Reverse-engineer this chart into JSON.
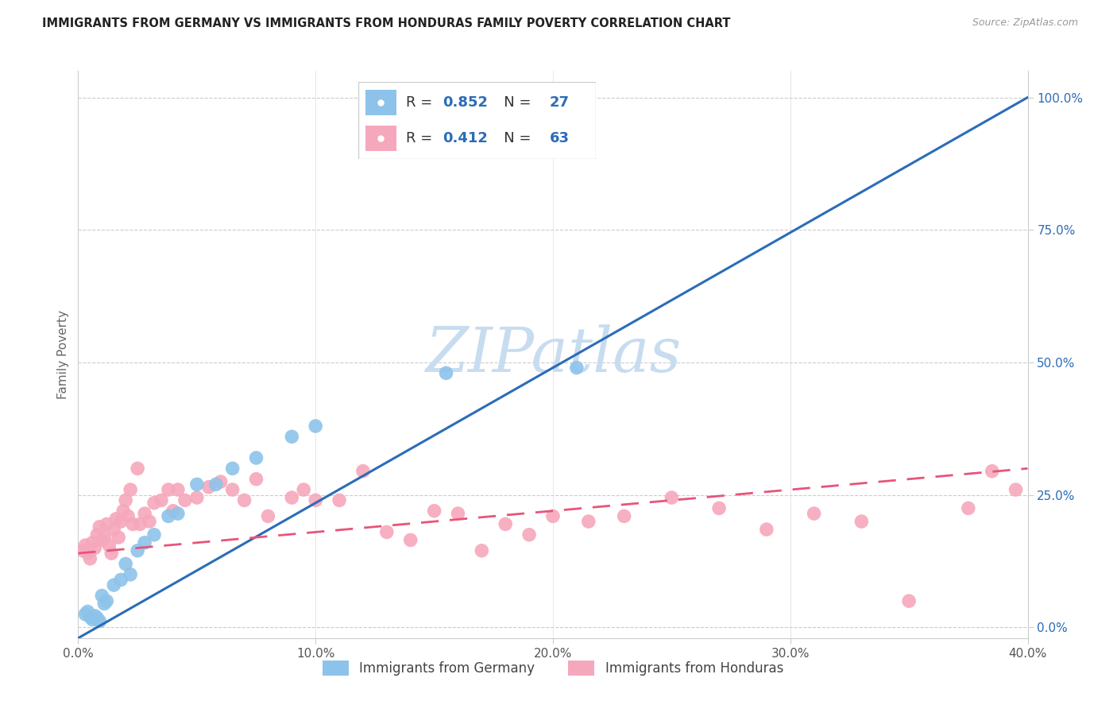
{
  "title": "IMMIGRANTS FROM GERMANY VS IMMIGRANTS FROM HONDURAS FAMILY POVERTY CORRELATION CHART",
  "source": "Source: ZipAtlas.com",
  "ylabel": "Family Poverty",
  "xlim": [
    0.0,
    0.4
  ],
  "ylim": [
    -0.02,
    1.05
  ],
  "germany_R": 0.852,
  "germany_N": 27,
  "honduras_R": 0.412,
  "honduras_N": 63,
  "germany_color": "#8DC3EA",
  "honduras_color": "#F5A8BC",
  "germany_line_color": "#2B6CB8",
  "honduras_line_color": "#E8547A",
  "legend_label_germany": "Immigrants from Germany",
  "legend_label_honduras": "Immigrants from Honduras",
  "watermark_text": "ZIPatlas",
  "watermark_color": "#C8DCF0",
  "background_color": "#ffffff",
  "right_ytick_values": [
    0.0,
    0.25,
    0.5,
    0.75,
    1.0
  ],
  "right_yticklabels": [
    "0.0%",
    "25.0%",
    "50.0%",
    "75.0%",
    "100.0%"
  ],
  "xtick_values": [
    0.0,
    0.1,
    0.2,
    0.3,
    0.4
  ],
  "xticklabels": [
    "0.0%",
    "10.0%",
    "20.0%",
    "30.0%",
    "40.0%"
  ],
  "germany_line_x": [
    0.0,
    0.4
  ],
  "germany_line_y": [
    -0.02,
    1.0
  ],
  "honduras_line_x": [
    0.0,
    0.4
  ],
  "honduras_line_y": [
    0.14,
    0.3
  ],
  "germany_scatter_x": [
    0.003,
    0.004,
    0.005,
    0.006,
    0.007,
    0.008,
    0.009,
    0.01,
    0.011,
    0.012,
    0.015,
    0.018,
    0.02,
    0.022,
    0.025,
    0.028,
    0.032,
    0.038,
    0.042,
    0.05,
    0.058,
    0.065,
    0.075,
    0.09,
    0.1,
    0.155,
    0.21
  ],
  "germany_scatter_y": [
    0.025,
    0.03,
    0.02,
    0.015,
    0.022,
    0.018,
    0.012,
    0.06,
    0.045,
    0.05,
    0.08,
    0.09,
    0.12,
    0.1,
    0.145,
    0.16,
    0.175,
    0.21,
    0.215,
    0.27,
    0.27,
    0.3,
    0.32,
    0.36,
    0.38,
    0.48,
    0.49
  ],
  "honduras_scatter_x": [
    0.002,
    0.003,
    0.004,
    0.005,
    0.006,
    0.007,
    0.008,
    0.009,
    0.01,
    0.011,
    0.012,
    0.013,
    0.014,
    0.015,
    0.016,
    0.017,
    0.018,
    0.019,
    0.02,
    0.021,
    0.022,
    0.023,
    0.025,
    0.026,
    0.028,
    0.03,
    0.032,
    0.035,
    0.038,
    0.04,
    0.042,
    0.045,
    0.05,
    0.055,
    0.06,
    0.065,
    0.07,
    0.075,
    0.08,
    0.09,
    0.095,
    0.1,
    0.11,
    0.12,
    0.13,
    0.14,
    0.15,
    0.16,
    0.17,
    0.18,
    0.19,
    0.2,
    0.215,
    0.23,
    0.25,
    0.27,
    0.29,
    0.31,
    0.33,
    0.35,
    0.375,
    0.385,
    0.395
  ],
  "honduras_scatter_y": [
    0.145,
    0.155,
    0.14,
    0.13,
    0.16,
    0.15,
    0.175,
    0.19,
    0.165,
    0.17,
    0.195,
    0.155,
    0.14,
    0.185,
    0.205,
    0.17,
    0.2,
    0.22,
    0.24,
    0.21,
    0.26,
    0.195,
    0.3,
    0.195,
    0.215,
    0.2,
    0.235,
    0.24,
    0.26,
    0.22,
    0.26,
    0.24,
    0.245,
    0.265,
    0.275,
    0.26,
    0.24,
    0.28,
    0.21,
    0.245,
    0.26,
    0.24,
    0.24,
    0.295,
    0.18,
    0.165,
    0.22,
    0.215,
    0.145,
    0.195,
    0.175,
    0.21,
    0.2,
    0.21,
    0.245,
    0.225,
    0.185,
    0.215,
    0.2,
    0.05,
    0.225,
    0.295,
    0.26
  ]
}
